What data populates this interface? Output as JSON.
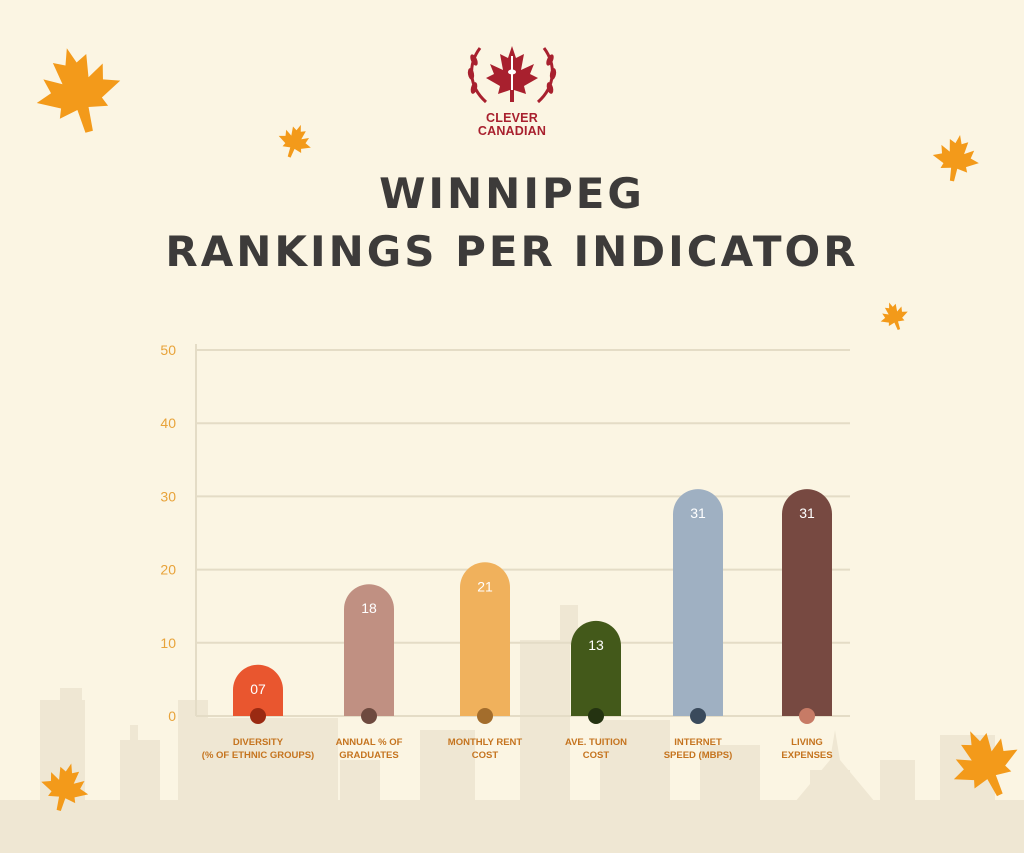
{
  "brand": {
    "line1": "CLEVER",
    "line2": "CANADIAN",
    "color": "#a8202e"
  },
  "title": {
    "line1": "WINNIPEG",
    "line2": "RANKINGS PER INDICATOR"
  },
  "colors": {
    "background": "#fbf5e3",
    "title": "#3d3b3a",
    "tick_labels": "#e8a33a",
    "category_labels": "#c5741f",
    "gridline": "#e4dcc6",
    "leaf": "#f39a1a",
    "skyline": "#efe7d3"
  },
  "icons": [
    "maple-leaf-icon",
    "laurel-wreath-icon",
    "cn-tower-icon"
  ],
  "chart_data": {
    "type": "bar",
    "categories": [
      [
        "DIVERSITY",
        "(% OF ETHNIC GROUPS)"
      ],
      [
        "ANNUAL % OF",
        "GRADUATES"
      ],
      [
        "MONTHLY RENT",
        "COST"
      ],
      [
        "AVE. TUITION",
        "COST"
      ],
      [
        "INTERNET",
        "SPEED (MBPS)"
      ],
      [
        "LIVING",
        "EXPENSES"
      ]
    ],
    "values": [
      7,
      18,
      21,
      13,
      31,
      31
    ],
    "value_labels": [
      "07",
      "18",
      "21",
      "13",
      "31",
      "31"
    ],
    "bar_colors": [
      "#e9562f",
      "#c09082",
      "#f0b15c",
      "#43591a",
      "#9fb0c2",
      "#774941"
    ],
    "dot_colors": [
      "#9a2a12",
      "#6e4a3f",
      "#a36d2c",
      "#243311",
      "#3a4a5c",
      "#c77b66"
    ],
    "ylim": [
      0,
      50
    ],
    "yticks": [
      0,
      10,
      20,
      30,
      40,
      50
    ],
    "grid": true,
    "title": "WINNIPEG RANKINGS PER INDICATOR",
    "xlabel": "",
    "ylabel": ""
  }
}
